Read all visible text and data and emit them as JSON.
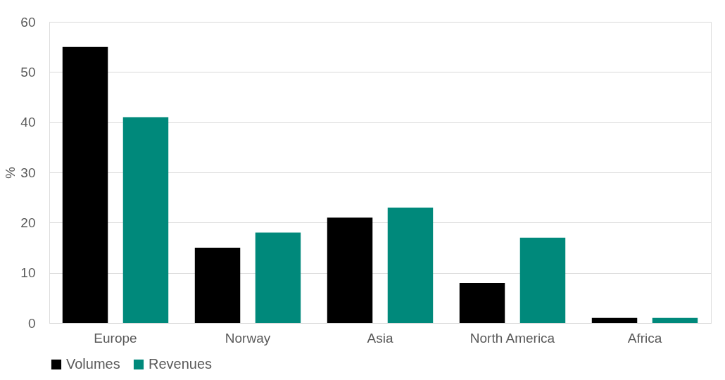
{
  "chart_data": {
    "type": "bar",
    "ylabel": "%",
    "categories": [
      "Europe",
      "Norway",
      "Asia",
      "North America",
      "Africa"
    ],
    "series": [
      {
        "name": "Volumes",
        "color": "#000000",
        "values": [
          55,
          15,
          21,
          8,
          1
        ]
      },
      {
        "name": "Revenues",
        "color": "#00897b",
        "values": [
          41,
          18,
          23,
          17,
          1
        ]
      }
    ],
    "ylim": [
      0,
      60
    ],
    "yticks": [
      0,
      10,
      20,
      30,
      40,
      50,
      60
    ],
    "grid": "y",
    "legend": "bottom"
  }
}
